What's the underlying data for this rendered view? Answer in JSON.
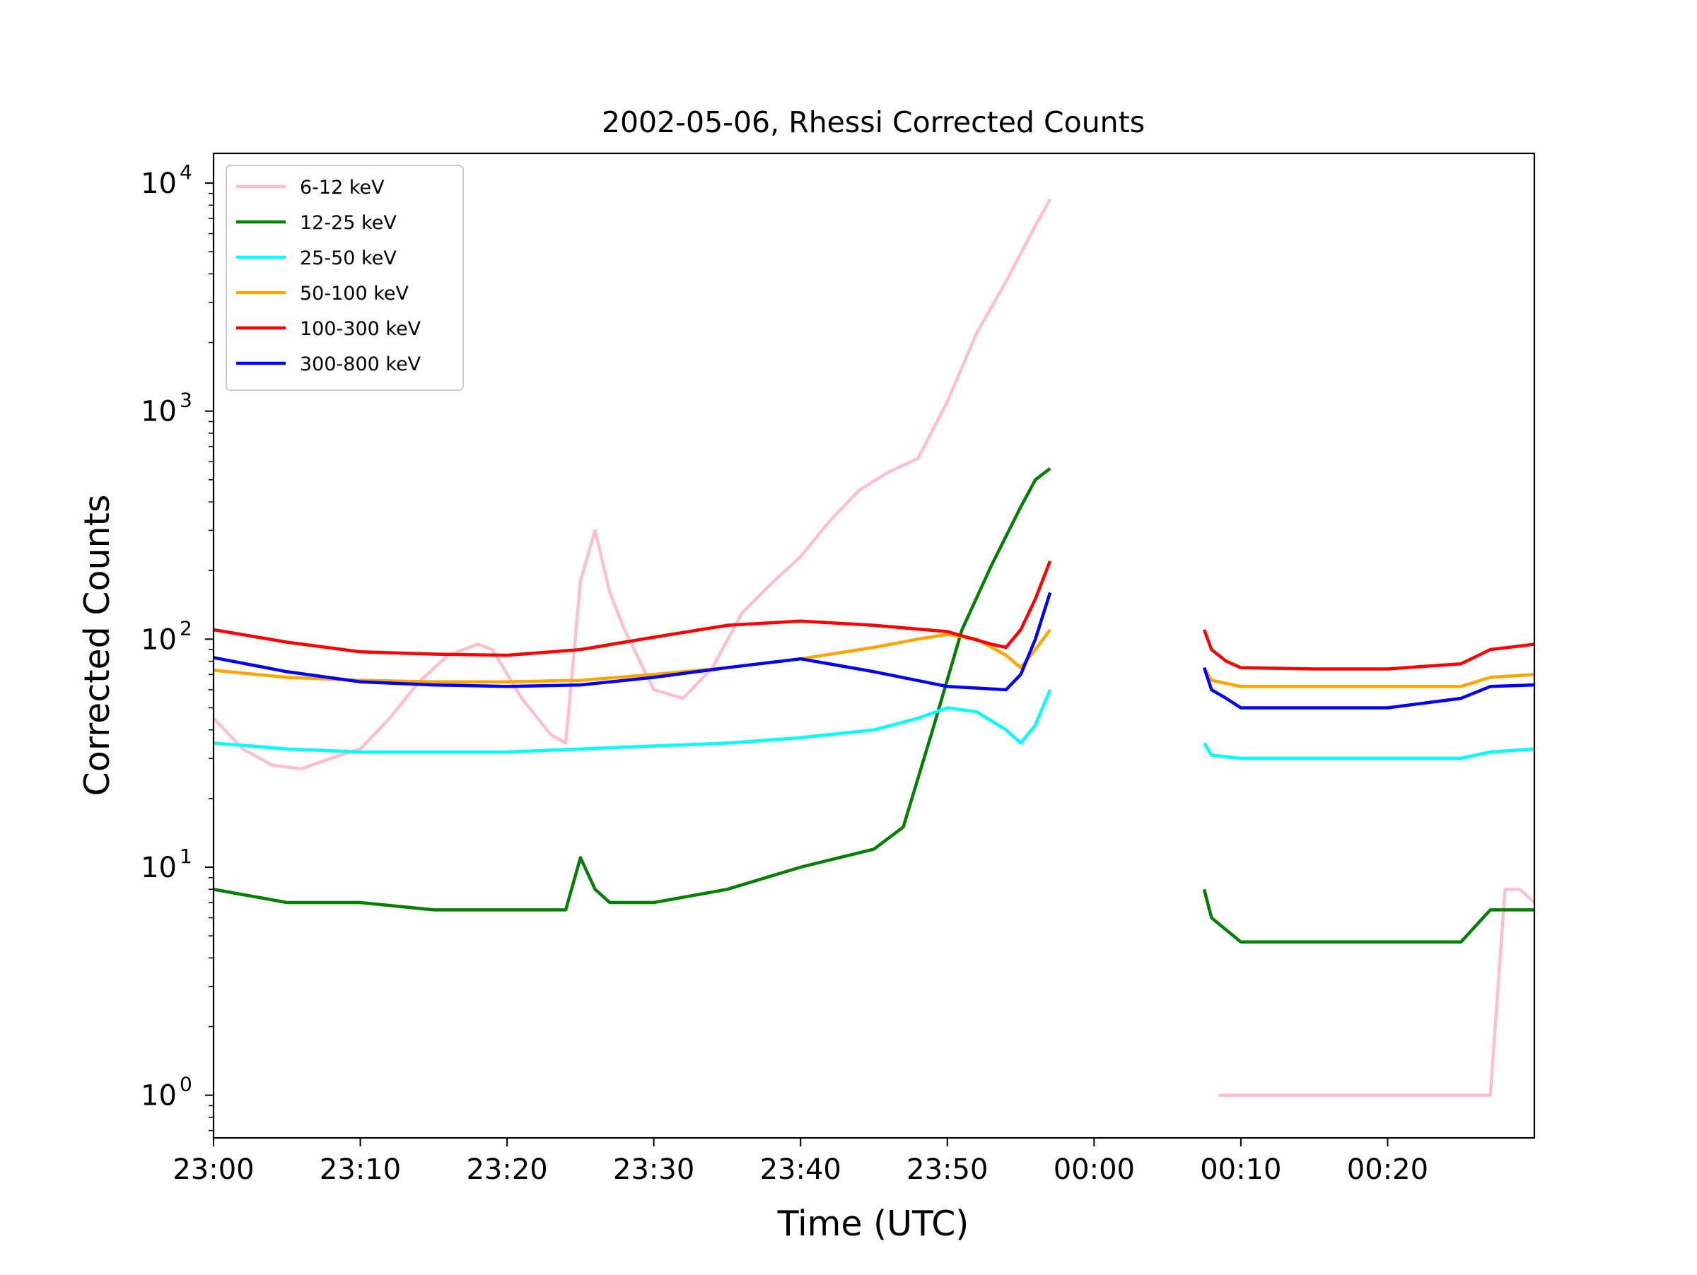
{
  "chart_data": {
    "type": "line",
    "title": "2002-05-06, Rhessi Corrected Counts",
    "xlabel": "Time (UTC)",
    "ylabel": "Corrected Counts",
    "yscale": "log",
    "ylim": [
      0.65,
      13500
    ],
    "xlim": [
      "23:00",
      "00:30"
    ],
    "xticks": [
      "23:00",
      "23:10",
      "23:20",
      "23:30",
      "23:40",
      "23:50",
      "00:00",
      "00:10",
      "00:20"
    ],
    "yticks": [
      {
        "value": 1,
        "base": "10",
        "exp": "0"
      },
      {
        "value": 10,
        "base": "10",
        "exp": "1"
      },
      {
        "value": 100,
        "base": "10",
        "exp": "2"
      },
      {
        "value": 1000,
        "base": "10",
        "exp": "3"
      },
      {
        "value": 10000,
        "base": "10",
        "exp": "4"
      }
    ],
    "legend_position": "upper-left",
    "grid": false,
    "series": [
      {
        "name": "6-12 keV",
        "color": "#ffc0cb",
        "x": [
          "23:00",
          "23:02",
          "23:04",
          "23:06",
          "23:08",
          "23:10",
          "23:12",
          "23:14",
          "23:16",
          "23:18",
          "23:19",
          "23:21",
          "23:23",
          "23:24",
          "23:25",
          "23:26",
          "23:27",
          "23:28",
          "23:30",
          "23:32",
          "23:34",
          "23:36",
          "23:38",
          "23:40",
          "23:42",
          "23:44",
          "23:46",
          "23:48",
          "23:50",
          "23:52",
          "23:54",
          "23:56",
          "23:57"
        ],
        "y": [
          45,
          33,
          28,
          27,
          30,
          33,
          45,
          65,
          85,
          95,
          90,
          55,
          38,
          35,
          180,
          300,
          160,
          110,
          60,
          55,
          75,
          130,
          175,
          230,
          330,
          450,
          540,
          620,
          1100,
          2200,
          3700,
          6500,
          8500
        ]
      },
      {
        "name": "6-12 keV",
        "color": "#ffc0cb",
        "x": [
          "00:08:30",
          "00:10",
          "00:12",
          "00:14",
          "00:16",
          "00:18",
          "00:20",
          "00:22",
          "00:24",
          "00:26",
          "00:27",
          "00:28",
          "00:29",
          "00:30"
        ],
        "y": [
          1,
          1,
          1,
          1,
          1,
          1,
          1,
          1,
          1,
          1,
          1,
          8,
          8,
          7
        ]
      },
      {
        "name": "12-25 keV",
        "color": "#008000",
        "x": [
          "23:00",
          "23:05",
          "23:10",
          "23:15",
          "23:20",
          "23:24",
          "23:25",
          "23:26",
          "23:27",
          "23:30",
          "23:35",
          "23:40",
          "23:45",
          "23:47",
          "23:49",
          "23:51",
          "23:53",
          "23:55",
          "23:56",
          "23:57"
        ],
        "y": [
          8,
          7,
          7,
          6.5,
          6.5,
          6.5,
          11,
          8,
          7,
          7,
          8,
          10,
          12,
          15,
          40,
          110,
          210,
          380,
          500,
          560
        ]
      },
      {
        "name": "12-25 keV",
        "color": "#008000",
        "x": [
          "00:07:30",
          "00:08",
          "00:10",
          "00:15",
          "00:20",
          "00:25",
          "00:27",
          "00:30"
        ],
        "y": [
          8,
          6,
          4.7,
          4.7,
          4.7,
          4.7,
          6.5,
          6.5
        ]
      },
      {
        "name": "25-50 keV",
        "color": "#00ffff",
        "x": [
          "23:00",
          "23:05",
          "23:10",
          "23:15",
          "23:20",
          "23:25",
          "23:30",
          "23:35",
          "23:40",
          "23:45",
          "23:48",
          "23:50",
          "23:52",
          "23:54",
          "23:55",
          "23:56",
          "23:57"
        ],
        "y": [
          35,
          33,
          32,
          32,
          32,
          33,
          34,
          35,
          37,
          40,
          45,
          50,
          48,
          40,
          35,
          42,
          60
        ]
      },
      {
        "name": "25-50 keV",
        "color": "#00ffff",
        "x": [
          "00:07:30",
          "00:08",
          "00:10",
          "00:15",
          "00:20",
          "00:25",
          "00:27",
          "00:30"
        ],
        "y": [
          35,
          31,
          30,
          30,
          30,
          30,
          32,
          33
        ]
      },
      {
        "name": "50-100 keV",
        "color": "#ffa500",
        "x": [
          "23:00",
          "23:05",
          "23:10",
          "23:15",
          "23:20",
          "23:25",
          "23:30",
          "23:35",
          "23:40",
          "23:45",
          "23:48",
          "23:50",
          "23:52",
          "23:54",
          "23:55",
          "23:56",
          "23:57"
        ],
        "y": [
          73,
          68,
          66,
          65,
          65,
          66,
          70,
          75,
          82,
          92,
          100,
          105,
          100,
          85,
          75,
          90,
          110
        ]
      },
      {
        "name": "50-100 keV",
        "color": "#ffa500",
        "x": [
          "00:07:30",
          "00:08",
          "00:10",
          "00:15",
          "00:20",
          "00:25",
          "00:27",
          "00:30"
        ],
        "y": [
          75,
          66,
          62,
          62,
          62,
          62,
          68,
          70
        ]
      },
      {
        "name": "100-300 keV",
        "color": "#ff0000",
        "x": [
          "23:00",
          "23:05",
          "23:10",
          "23:15",
          "23:20",
          "23:25",
          "23:30",
          "23:35",
          "23:40",
          "23:45",
          "23:50",
          "23:53",
          "23:54",
          "23:55",
          "23:56",
          "23:57"
        ],
        "y": [
          110,
          97,
          88,
          86,
          85,
          90,
          102,
          115,
          120,
          115,
          108,
          95,
          92,
          110,
          150,
          220
        ]
      },
      {
        "name": "100-300 keV",
        "color": "#ff0000",
        "x": [
          "00:07:30",
          "00:08",
          "00:09",
          "00:10",
          "00:15",
          "00:20",
          "00:25",
          "00:27",
          "00:30"
        ],
        "y": [
          110,
          90,
          80,
          75,
          74,
          74,
          78,
          90,
          95
        ]
      },
      {
        "name": "300-800 keV",
        "color": "#0000ff",
        "x": [
          "23:00",
          "23:05",
          "23:10",
          "23:15",
          "23:20",
          "23:25",
          "23:30",
          "23:35",
          "23:40",
          "23:45",
          "23:50",
          "23:54",
          "23:55",
          "23:56",
          "23:57"
        ],
        "y": [
          83,
          72,
          65,
          63,
          62,
          63,
          68,
          75,
          82,
          72,
          62,
          60,
          70,
          100,
          160
        ]
      },
      {
        "name": "300-800 keV",
        "color": "#0000ff",
        "x": [
          "00:07:30",
          "00:08",
          "00:09",
          "00:10",
          "00:15",
          "00:20",
          "00:25",
          "00:27",
          "00:30"
        ],
        "y": [
          75,
          60,
          55,
          50,
          50,
          50,
          55,
          62,
          63
        ]
      }
    ]
  }
}
